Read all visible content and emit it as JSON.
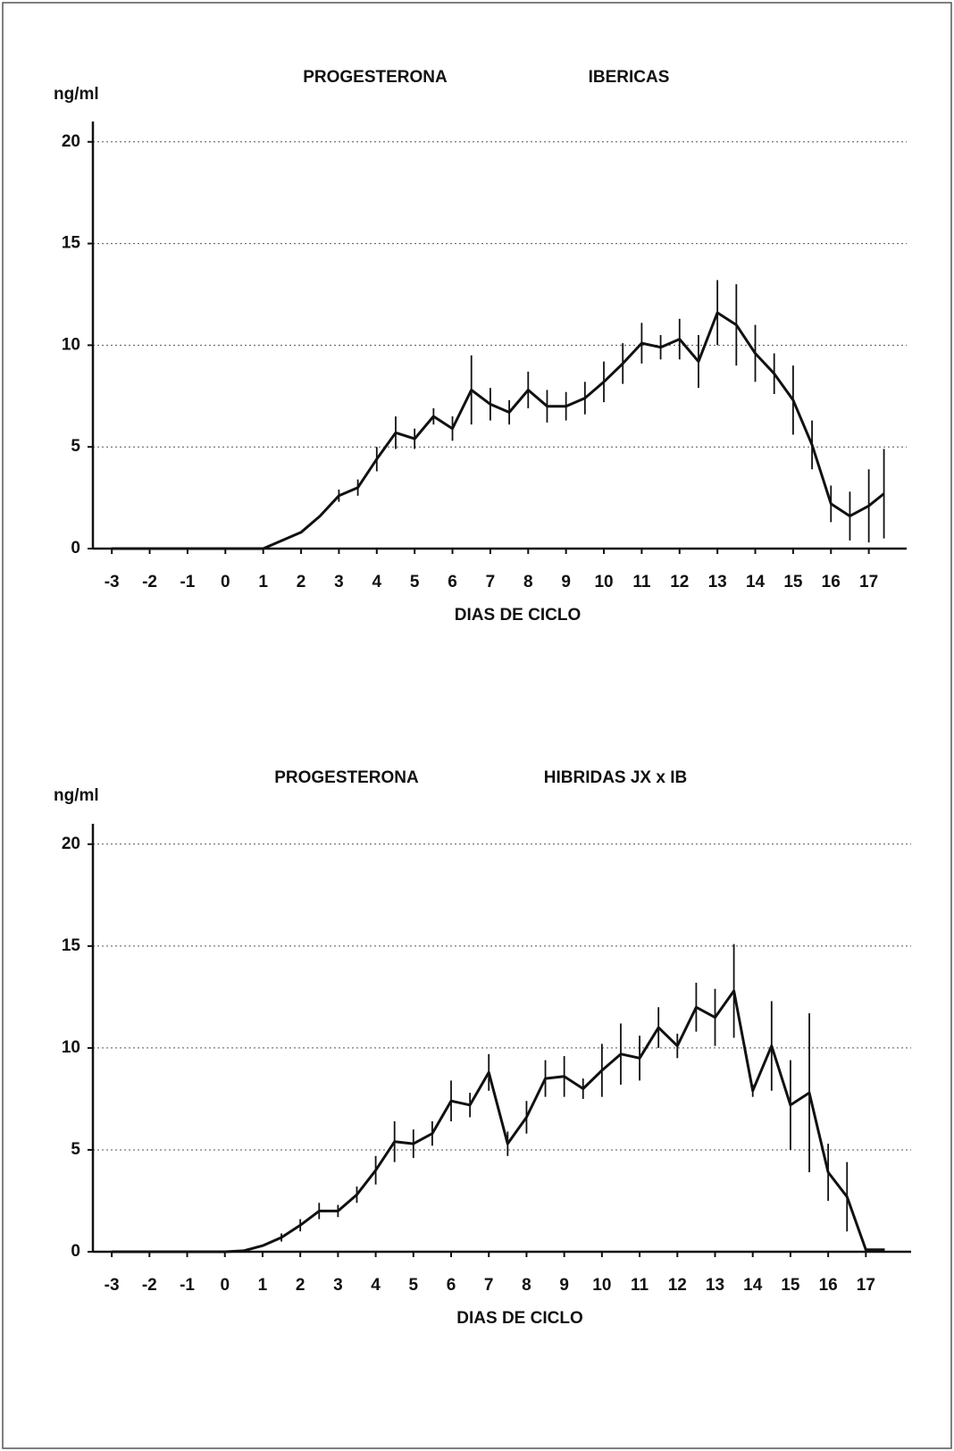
{
  "chart_data": [
    {
      "type": "line",
      "title": "PROGESTERONA",
      "subtitle": "IBERICAS",
      "y_label": "ng/ml",
      "x_label": "DIAS DE CICLO",
      "color": "#111111",
      "grid": true,
      "xlim": [
        -3.5,
        18
      ],
      "xticks": [
        -3,
        -2,
        -1,
        0,
        1,
        2,
        3,
        4,
        5,
        6,
        7,
        8,
        9,
        10,
        11,
        12,
        13,
        14,
        15,
        16,
        17
      ],
      "ylim": [
        0,
        21
      ],
      "yticks": [
        0,
        5,
        10,
        15,
        20
      ],
      "x": [
        -3,
        -2,
        -1,
        0,
        1,
        2,
        2.5,
        3,
        3.5,
        4,
        4.5,
        5,
        5.5,
        6,
        6.5,
        7,
        7.5,
        8,
        8.5,
        9,
        9.5,
        10,
        10.5,
        11,
        11.5,
        12,
        12.5,
        13,
        13.5,
        14,
        14.5,
        15,
        15.5,
        16,
        16.5,
        17,
        17.4
      ],
      "values": [
        0,
        0,
        0,
        0,
        0,
        0.8,
        1.6,
        2.6,
        3.0,
        4.4,
        5.7,
        5.4,
        6.5,
        5.9,
        7.8,
        7.1,
        6.7,
        7.8,
        7.0,
        7.0,
        7.4,
        8.2,
        9.1,
        10.1,
        9.9,
        10.3,
        9.2,
        11.6,
        11.0,
        9.6,
        8.6,
        7.3,
        5.1,
        2.2,
        1.6,
        2.1,
        2.7
      ],
      "errors": [
        null,
        null,
        null,
        null,
        null,
        null,
        null,
        0.3,
        0.4,
        0.6,
        0.8,
        0.5,
        0.4,
        0.6,
        1.7,
        0.8,
        0.6,
        0.9,
        0.8,
        0.7,
        0.8,
        1.0,
        1.0,
        1.0,
        0.6,
        1.0,
        1.3,
        1.6,
        2.0,
        1.4,
        1.0,
        1.7,
        1.2,
        0.9,
        1.2,
        1.8,
        2.2
      ]
    },
    {
      "type": "line",
      "title": "PROGESTERONA",
      "subtitle": "HIBRIDAS JX x IB",
      "y_label": "ng/ml",
      "x_label": "DIAS DE CICLO",
      "color": "#111111",
      "grid": true,
      "xlim": [
        -3.5,
        18.2
      ],
      "xticks": [
        -3,
        -2,
        -1,
        0,
        1,
        2,
        3,
        4,
        5,
        6,
        7,
        8,
        9,
        10,
        11,
        12,
        13,
        14,
        15,
        16,
        17
      ],
      "ylim": [
        0,
        21
      ],
      "yticks": [
        0,
        5,
        10,
        15,
        20
      ],
      "x": [
        -3,
        -2,
        -1,
        0,
        0.5,
        1,
        1.5,
        2,
        2.5,
        3,
        3.5,
        4,
        4.5,
        5,
        5.5,
        6,
        6.5,
        7,
        7.5,
        8,
        8.5,
        9,
        9.5,
        10,
        10.5,
        11,
        11.5,
        12,
        12.5,
        13,
        13.5,
        14,
        14.5,
        15,
        15.5,
        16,
        16.5,
        17,
        17.5
      ],
      "values": [
        0,
        0,
        0,
        0,
        0.05,
        0.3,
        0.7,
        1.3,
        2.0,
        2.0,
        2.8,
        4.0,
        5.4,
        5.3,
        5.8,
        7.4,
        7.2,
        8.8,
        5.3,
        6.6,
        8.5,
        8.6,
        8.0,
        8.9,
        9.7,
        9.5,
        11.0,
        10.1,
        12.0,
        11.5,
        12.8,
        7.9,
        10.1,
        7.2,
        7.8,
        3.9,
        2.7,
        0.1,
        0.1
      ],
      "errors": [
        null,
        null,
        null,
        null,
        null,
        null,
        0.2,
        0.3,
        0.4,
        0.3,
        0.4,
        0.7,
        1.0,
        0.7,
        0.6,
        1.0,
        0.6,
        0.9,
        0.6,
        0.8,
        0.9,
        1.0,
        0.5,
        1.3,
        1.5,
        1.1,
        1.0,
        0.6,
        1.2,
        1.4,
        2.3,
        0.3,
        2.2,
        2.2,
        3.9,
        1.4,
        1.7,
        null,
        null
      ]
    }
  ]
}
